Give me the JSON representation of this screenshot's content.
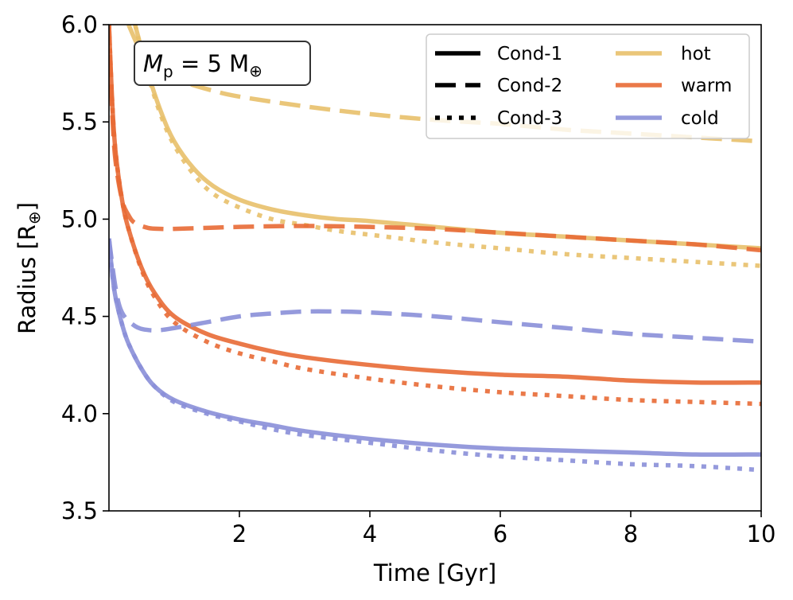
{
  "chart_data": {
    "type": "line",
    "xlabel": "Time [Gyr]",
    "ylabel_main": "Radius [R",
    "ylabel_sub": "⊕",
    "ylabel_close": "]",
    "xlim": [
      0,
      10
    ],
    "ylim": [
      3.5,
      6.0
    ],
    "xticks": [
      2,
      4,
      6,
      8,
      10
    ],
    "yticks": [
      3.5,
      4.0,
      4.5,
      5.0,
      5.5,
      6.0
    ],
    "xtick_labels": [
      "2",
      "4",
      "6",
      "8",
      10
    ],
    "ytick_labels": [
      "3.5",
      "4.0",
      "4.5",
      "5.0",
      "5.5",
      "6.0"
    ],
    "annotation": {
      "symbol": "M",
      "subscript": "p",
      "text": " = 5 M",
      "sub2": "⊕"
    },
    "colors": {
      "hot": "#e8c06a",
      "warm": "#e86a35",
      "cold": "#8a8fd8"
    },
    "legend": {
      "placement": "top-right",
      "styles": [
        {
          "label": "Cond-1",
          "dash": "solid"
        },
        {
          "label": "Cond-2",
          "dash": "dashed"
        },
        {
          "label": "Cond-3",
          "dash": "dotted"
        }
      ],
      "colors": [
        {
          "label": "hot",
          "color": "#e8c06a"
        },
        {
          "label": "warm",
          "color": "#e86a35"
        },
        {
          "label": "cold",
          "color": "#8a8fd8"
        }
      ]
    },
    "series": [
      {
        "name": "hot Cond-1",
        "color": "#e8c06a",
        "dash": "solid",
        "x": [
          0.4,
          0.6,
          0.8,
          1.0,
          1.3,
          1.6,
          2.0,
          2.5,
          3.0,
          3.5,
          4.0,
          5.0,
          6.0,
          7.0,
          8.0,
          9.0,
          10.0
        ],
        "y": [
          6.0,
          5.75,
          5.55,
          5.4,
          5.26,
          5.17,
          5.1,
          5.05,
          5.02,
          5.0,
          4.99,
          4.96,
          4.93,
          4.91,
          4.89,
          4.87,
          4.85
        ]
      },
      {
        "name": "hot Cond-2",
        "color": "#e8c06a",
        "dash": "dashed",
        "x": [
          0.3,
          0.5,
          0.8,
          1.2,
          1.6,
          2.0,
          3.0,
          4.0,
          5.0,
          6.0,
          7.0,
          8.0,
          9.0,
          10.0
        ],
        "y": [
          6.0,
          5.86,
          5.76,
          5.7,
          5.66,
          5.63,
          5.58,
          5.54,
          5.51,
          5.49,
          5.46,
          5.44,
          5.42,
          5.4
        ]
      },
      {
        "name": "hot Cond-3",
        "color": "#e8c06a",
        "dash": "dotted",
        "x": [
          0.4,
          0.6,
          0.8,
          1.0,
          1.3,
          1.6,
          2.0,
          2.5,
          3.0,
          3.5,
          4.0,
          5.0,
          6.0,
          7.0,
          8.0,
          9.0,
          10.0
        ],
        "y": [
          6.0,
          5.74,
          5.53,
          5.38,
          5.23,
          5.13,
          5.06,
          5.0,
          4.97,
          4.94,
          4.92,
          4.88,
          4.85,
          4.82,
          4.8,
          4.78,
          4.76
        ]
      },
      {
        "name": "warm Cond-1",
        "color": "#e86a35",
        "dash": "solid",
        "x": [
          0.0,
          0.05,
          0.1,
          0.2,
          0.3,
          0.5,
          0.7,
          1.0,
          1.5,
          2.0,
          2.5,
          3.0,
          4.0,
          5.0,
          6.0,
          7.0,
          8.0,
          9.0,
          10.0
        ],
        "y": [
          6.0,
          5.6,
          5.35,
          5.1,
          4.95,
          4.75,
          4.62,
          4.5,
          4.41,
          4.36,
          4.32,
          4.29,
          4.25,
          4.22,
          4.2,
          4.19,
          4.17,
          4.16,
          4.16
        ]
      },
      {
        "name": "warm Cond-2",
        "color": "#e86a35",
        "dash": "dashed",
        "x": [
          0.0,
          0.05,
          0.1,
          0.2,
          0.3,
          0.4,
          0.6,
          0.8,
          1.0,
          1.5,
          2.0,
          3.0,
          4.0,
          5.0,
          6.0,
          7.0,
          8.0,
          9.0,
          10.0
        ],
        "y": [
          6.0,
          5.55,
          5.3,
          5.1,
          5.02,
          4.98,
          4.955,
          4.95,
          4.95,
          4.955,
          4.96,
          4.965,
          4.96,
          4.95,
          4.93,
          4.91,
          4.89,
          4.87,
          4.84
        ]
      },
      {
        "name": "warm Cond-3",
        "color": "#e86a35",
        "dash": "dotted",
        "x": [
          0.0,
          0.05,
          0.1,
          0.2,
          0.3,
          0.5,
          0.7,
          1.0,
          1.5,
          2.0,
          2.5,
          3.0,
          4.0,
          5.0,
          6.0,
          7.0,
          8.0,
          9.0,
          10.0
        ],
        "y": [
          6.0,
          5.6,
          5.35,
          5.1,
          4.95,
          4.74,
          4.6,
          4.47,
          4.37,
          4.31,
          4.27,
          4.23,
          4.18,
          4.14,
          4.11,
          4.09,
          4.07,
          4.06,
          4.05
        ]
      },
      {
        "name": "cold Cond-1",
        "color": "#8a8fd8",
        "dash": "solid",
        "x": [
          0.0,
          0.05,
          0.1,
          0.2,
          0.3,
          0.5,
          0.7,
          1.0,
          1.5,
          2.0,
          2.5,
          3.0,
          4.0,
          5.0,
          6.0,
          7.0,
          8.0,
          9.0,
          10.0
        ],
        "y": [
          4.9,
          4.72,
          4.6,
          4.46,
          4.36,
          4.23,
          4.14,
          4.07,
          4.01,
          3.97,
          3.94,
          3.91,
          3.87,
          3.84,
          3.82,
          3.81,
          3.8,
          3.79,
          3.79
        ]
      },
      {
        "name": "cold Cond-2",
        "color": "#8a8fd8",
        "dash": "dashed",
        "x": [
          0.0,
          0.1,
          0.2,
          0.4,
          0.6,
          0.8,
          1.0,
          1.5,
          2.0,
          2.5,
          3.0,
          3.5,
          4.0,
          5.0,
          6.0,
          7.0,
          8.0,
          9.0,
          10.0
        ],
        "y": [
          4.9,
          4.65,
          4.52,
          4.45,
          4.43,
          4.43,
          4.44,
          4.47,
          4.5,
          4.515,
          4.525,
          4.525,
          4.52,
          4.5,
          4.47,
          4.44,
          4.41,
          4.39,
          4.37
        ]
      },
      {
        "name": "cold Cond-3",
        "color": "#8a8fd8",
        "dash": "dotted",
        "x": [
          0.0,
          0.05,
          0.1,
          0.2,
          0.3,
          0.5,
          0.7,
          1.0,
          1.5,
          2.0,
          2.5,
          3.0,
          4.0,
          5.0,
          6.0,
          7.0,
          8.0,
          9.0,
          10.0
        ],
        "y": [
          4.9,
          4.72,
          4.6,
          4.46,
          4.36,
          4.23,
          4.14,
          4.06,
          4.0,
          3.96,
          3.92,
          3.89,
          3.85,
          3.81,
          3.78,
          3.76,
          3.74,
          3.73,
          3.71
        ]
      }
    ]
  }
}
